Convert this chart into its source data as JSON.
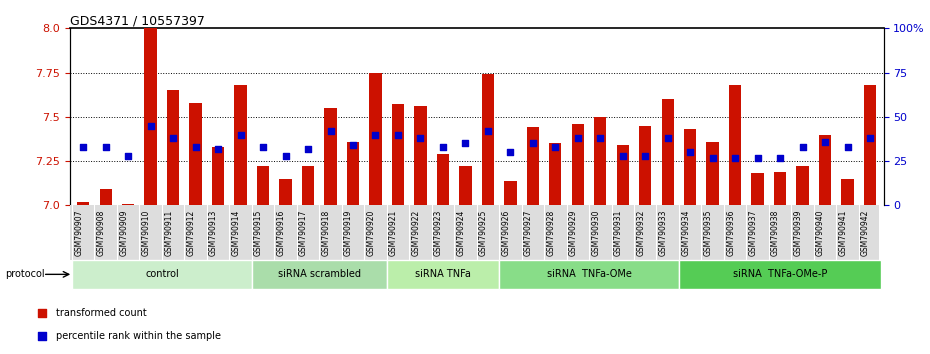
{
  "title": "GDS4371 / 10557397",
  "samples": [
    "GSM790907",
    "GSM790908",
    "GSM790909",
    "GSM790910",
    "GSM790911",
    "GSM790912",
    "GSM790913",
    "GSM790914",
    "GSM790915",
    "GSM790916",
    "GSM790917",
    "GSM790918",
    "GSM790919",
    "GSM790920",
    "GSM790921",
    "GSM790922",
    "GSM790923",
    "GSM790924",
    "GSM790925",
    "GSM790926",
    "GSM790927",
    "GSM790928",
    "GSM790929",
    "GSM790930",
    "GSM790931",
    "GSM790932",
    "GSM790933",
    "GSM790934",
    "GSM790935",
    "GSM790936",
    "GSM790937",
    "GSM790938",
    "GSM790939",
    "GSM790940",
    "GSM790941",
    "GSM790942"
  ],
  "bar_values": [
    7.02,
    7.09,
    7.01,
    8.0,
    7.65,
    7.58,
    7.33,
    7.68,
    7.22,
    7.15,
    7.22,
    7.55,
    7.36,
    7.75,
    7.57,
    7.56,
    7.29,
    7.22,
    7.74,
    7.14,
    7.44,
    7.35,
    7.46,
    7.5,
    7.34,
    7.45,
    7.6,
    7.43,
    7.36,
    7.68,
    7.18,
    7.19,
    7.22,
    7.4,
    7.15,
    7.68
  ],
  "percentile_values": [
    33,
    33,
    28,
    45,
    38,
    33,
    32,
    40,
    33,
    28,
    32,
    42,
    34,
    40,
    40,
    38,
    33,
    35,
    42,
    30,
    35,
    33,
    38,
    38,
    28,
    28,
    38,
    30,
    27,
    27,
    27,
    27,
    33,
    36,
    33,
    38
  ],
  "groups": [
    {
      "label": "control",
      "start": 0,
      "end": 8,
      "color": "#cceecc"
    },
    {
      "label": "siRNA scrambled",
      "start": 8,
      "end": 14,
      "color": "#aaddaa"
    },
    {
      "label": "siRNA TNFa",
      "start": 14,
      "end": 19,
      "color": "#bbeeaa"
    },
    {
      "label": "siRNA  TNFa-OMe",
      "start": 19,
      "end": 27,
      "color": "#88dd88"
    },
    {
      "label": "siRNA  TNFa-OMe-P",
      "start": 27,
      "end": 36,
      "color": "#55cc55"
    }
  ],
  "ylim_left": [
    7.0,
    8.0
  ],
  "ylim_right": [
    0,
    100
  ],
  "yticks_left": [
    7.0,
    7.25,
    7.5,
    7.75,
    8.0
  ],
  "yticks_right": [
    0,
    25,
    50,
    75,
    100
  ],
  "bar_color": "#cc1100",
  "dot_color": "#0000cc",
  "title_color": "#000000",
  "left_axis_color": "#cc1100",
  "right_axis_color": "#0000cc",
  "grid_color": "#000000",
  "background_color": "#ffffff",
  "legend_items": [
    "transformed count",
    "percentile rank within the sample"
  ]
}
